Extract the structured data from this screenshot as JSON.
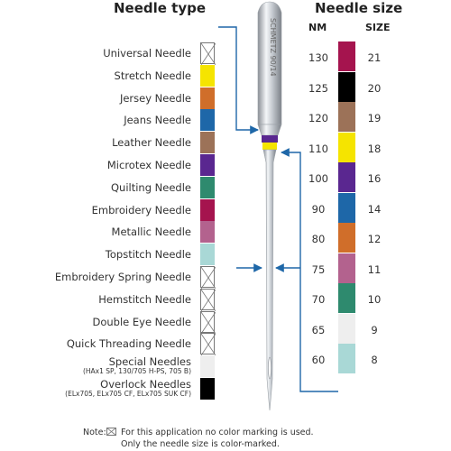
{
  "headings": {
    "needle_type": "Needle type",
    "needle_size": "Needle size",
    "nm": "NM",
    "size": "SIZE"
  },
  "needle_types": [
    {
      "label": "Universal Needle",
      "sub": "",
      "color": "none"
    },
    {
      "label": "Stretch Needle",
      "sub": "",
      "color": "#f5e400"
    },
    {
      "label": "Jersey Needle",
      "sub": "",
      "color": "#d06e2a"
    },
    {
      "label": "Jeans Needle",
      "sub": "",
      "color": "#1e67a8"
    },
    {
      "label": "Leather Needle",
      "sub": "",
      "color": "#9c7258"
    },
    {
      "label": "Microtex Needle",
      "sub": "",
      "color": "#5a2790"
    },
    {
      "label": "Quilting Needle",
      "sub": "",
      "color": "#2e8a6e"
    },
    {
      "label": "Embroidery Needle",
      "sub": "",
      "color": "#a5144e"
    },
    {
      "label": "Metallic Needle",
      "sub": "",
      "color": "#b3628e"
    },
    {
      "label": "Topstitch Needle",
      "sub": "",
      "color": "#a9d8d6"
    },
    {
      "label": "Embroidery Spring Needle",
      "sub": "",
      "color": "none"
    },
    {
      "label": "Hemstitch Needle",
      "sub": "",
      "color": "none"
    },
    {
      "label": "Double Eye Needle",
      "sub": "",
      "color": "none"
    },
    {
      "label": "Quick Threading Needle",
      "sub": "",
      "color": "none"
    },
    {
      "label": "Special Needles",
      "sub": "(HAx1 SP, 130/705 H-PS, 705 B)",
      "color": "#eeeeee"
    },
    {
      "label": "Overlock Needles",
      "sub": "(ELx705, ELx705 CF, ELx705 SUK CF)",
      "color": "#000000"
    }
  ],
  "needle_sizes": [
    {
      "nm": "130",
      "size": "21",
      "color": "#a5144e"
    },
    {
      "nm": "125",
      "size": "20",
      "color": "#000000"
    },
    {
      "nm": "120",
      "size": "19",
      "color": "#9c7258"
    },
    {
      "nm": "110",
      "size": "18",
      "color": "#f5e400"
    },
    {
      "nm": "100",
      "size": "16",
      "color": "#5a2790"
    },
    {
      "nm": "90",
      "size": "14",
      "color": "#1e67a8"
    },
    {
      "nm": "80",
      "size": "12",
      "color": "#d06e2a"
    },
    {
      "nm": "75",
      "size": "11",
      "color": "#b3628e"
    },
    {
      "nm": "70",
      "size": "10",
      "color": "#2e8a6e"
    },
    {
      "nm": "65",
      "size": "9",
      "color": "#eeeeee"
    },
    {
      "nm": "60",
      "size": "8",
      "color": "#a9d8d6"
    }
  ],
  "needle_engraving": "SCHMETZ 90/14",
  "note": {
    "prefix": "Note:",
    "line1": "For this application no color marking is used.",
    "line2": "Only the needle size is color-marked."
  },
  "accent_color": "#1e67a8"
}
